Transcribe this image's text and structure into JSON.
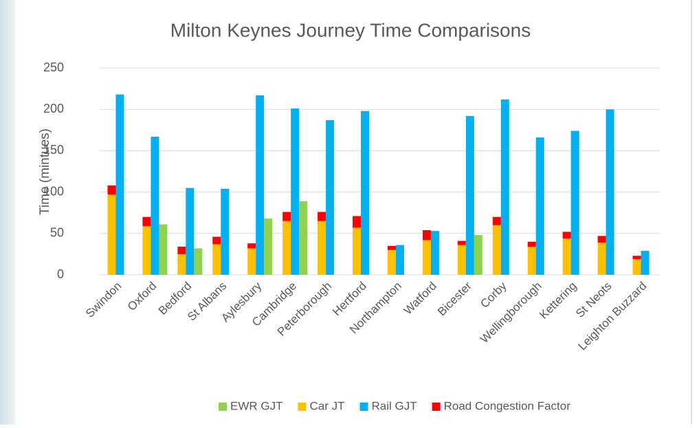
{
  "chart_data": {
    "type": "bar",
    "title": "Milton Keynes Journey Time Comparisons",
    "y_label": "Time (mintues)",
    "categories": [
      "Swindon",
      "Oxford",
      "Bedford",
      "St Albans",
      "Aylesbury",
      "Cambridge",
      "Peterborough",
      "Hertford",
      "Northampton",
      "Watford",
      "Bicester",
      "Corby",
      "Wellingborough",
      "Kettering",
      "St Neots",
      "Leighton Buzzard"
    ],
    "series": [
      {
        "name": "EWR GJT",
        "color": "#92d050",
        "values": [
          null,
          61,
          32,
          null,
          68,
          89,
          null,
          null,
          null,
          null,
          48,
          null,
          null,
          null,
          null,
          null
        ]
      },
      {
        "name": "Car JT",
        "color": "#ffc000",
        "values": [
          97,
          59,
          25,
          37,
          32,
          65,
          65,
          57,
          30,
          42,
          36,
          60,
          34,
          44,
          39,
          19
        ]
      },
      {
        "name": "Rail GJT",
        "color": "#00b0f0",
        "values": [
          218,
          167,
          105,
          104,
          217,
          201,
          187,
          198,
          36,
          53,
          192,
          212,
          166,
          174,
          200,
          29
        ]
      },
      {
        "name": "Road Congestion Factor",
        "color": "#ff0000",
        "stack_on": 1,
        "values": [
          11,
          11,
          9,
          9,
          6,
          11,
          11,
          14,
          5,
          12,
          5,
          10,
          6,
          8,
          8,
          4
        ]
      }
    ],
    "group_order": [
      1,
      2,
      0
    ],
    "ylim": [
      0,
      250
    ],
    "yticks": [
      0,
      50,
      100,
      150,
      200,
      250
    ],
    "grid": true,
    "legend": "bottom"
  }
}
